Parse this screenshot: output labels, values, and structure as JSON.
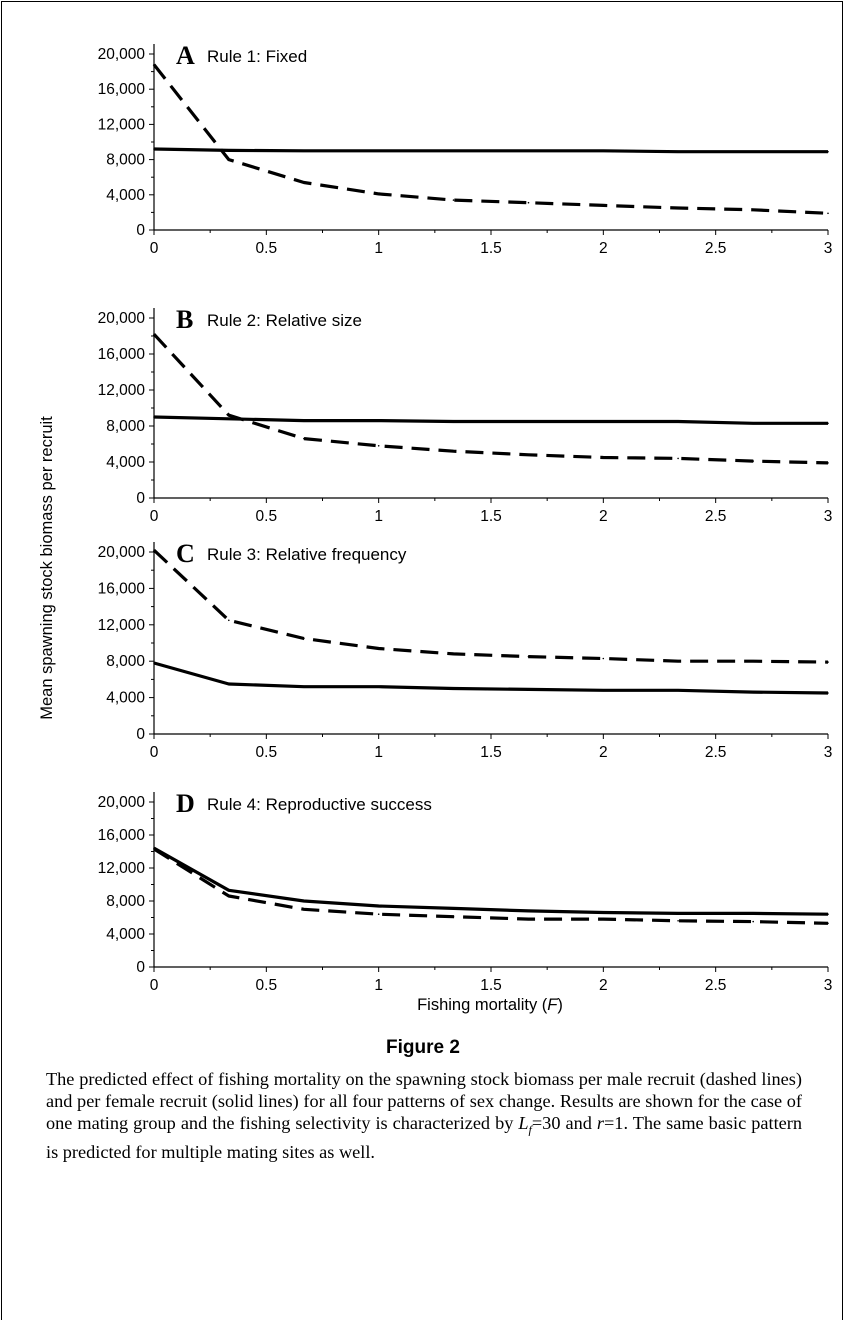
{
  "y_axis_label": "Mean spawning stock biomass per recruit",
  "x_axis_label_prefix": "Fishing mortality (",
  "x_axis_label_symbol": "F",
  "x_axis_label_suffix": ")",
  "figure_title": "Figure 2",
  "caption_parts": {
    "before_lf": "The predicted effect of fishing mortality on the spawning stock biomass per male recruit (dashed lines) and per female recruit (solid lines) for all four patterns of sex change. Results are shown for the case of one mating group and the fishing selectivity is characterized by ",
    "lf_symbol": "L",
    "lf_subscript": "f",
    "lf_value": "=30 and ",
    "r_symbol": "r",
    "after_r": "=1. The same basic pattern is predicted for multiple mating sites as well."
  },
  "chart_data": [
    {
      "type": "line",
      "panel_letter": "A",
      "title": "Rule 1: Fixed",
      "x": [
        0,
        0.333,
        0.667,
        1,
        1.333,
        1.667,
        2,
        2.333,
        2.667,
        3
      ],
      "x_ticks": [
        "0",
        "0.5",
        "1",
        "1.5",
        "2",
        "2.5",
        "3"
      ],
      "y_ticks": [
        "0",
        "4,000",
        "8,000",
        "12,000",
        "16,000",
        "20,000"
      ],
      "xlim": [
        0,
        3
      ],
      "ylim": [
        0,
        20000
      ],
      "series": [
        {
          "style": "solid",
          "values": [
            9200,
            9050,
            9000,
            9000,
            9000,
            9000,
            9000,
            8900,
            8900,
            8900
          ]
        },
        {
          "style": "dashed",
          "values": [
            18800,
            8000,
            5400,
            4100,
            3400,
            3100,
            2800,
            2500,
            2300,
            1900
          ]
        }
      ]
    },
    {
      "type": "line",
      "panel_letter": "B",
      "title": "Rule 2: Relative size",
      "x": [
        0,
        0.333,
        0.667,
        1,
        1.333,
        1.667,
        2,
        2.333,
        2.667,
        3
      ],
      "x_ticks": [
        "0",
        "0.5",
        "1",
        "1.5",
        "2",
        "2.5",
        "3"
      ],
      "y_ticks": [
        "0",
        "4,000",
        "8,000",
        "12,000",
        "16,000",
        "20,000"
      ],
      "xlim": [
        0,
        3
      ],
      "ylim": [
        0,
        20000
      ],
      "series": [
        {
          "style": "solid",
          "values": [
            9000,
            8800,
            8600,
            8600,
            8500,
            8500,
            8500,
            8500,
            8300,
            8300
          ]
        },
        {
          "style": "dashed",
          "values": [
            18200,
            9200,
            6600,
            5800,
            5200,
            4800,
            4500,
            4400,
            4100,
            3900
          ]
        }
      ]
    },
    {
      "type": "line",
      "panel_letter": "C",
      "title": "Rule 3: Relative frequency",
      "x": [
        0,
        0.333,
        0.667,
        1,
        1.333,
        1.667,
        2,
        2.333,
        2.667,
        3
      ],
      "x_ticks": [
        "0",
        "0.5",
        "1",
        "1.5",
        "2",
        "2.5",
        "3"
      ],
      "y_ticks": [
        "0",
        "4,000",
        "8,000",
        "12,000",
        "16,000",
        "20,000"
      ],
      "xlim": [
        0,
        3
      ],
      "ylim": [
        0,
        20000
      ],
      "series": [
        {
          "style": "solid",
          "values": [
            7800,
            5500,
            5200,
            5200,
            5000,
            4900,
            4800,
            4800,
            4600,
            4500
          ]
        },
        {
          "style": "dashed",
          "values": [
            20200,
            12500,
            10500,
            9400,
            8800,
            8500,
            8300,
            8000,
            8000,
            7900
          ]
        }
      ]
    },
    {
      "type": "line",
      "panel_letter": "D",
      "title": "Rule 4: Reproductive success",
      "x": [
        0,
        0.333,
        0.667,
        1,
        1.333,
        1.667,
        2,
        2.333,
        2.667,
        3
      ],
      "x_ticks": [
        "0",
        "0.5",
        "1",
        "1.5",
        "2",
        "2.5",
        "3"
      ],
      "y_ticks": [
        "0",
        "4,000",
        "8,000",
        "12,000",
        "16,000",
        "20,000"
      ],
      "xlim": [
        0,
        3
      ],
      "ylim": [
        0,
        20000
      ],
      "series": [
        {
          "style": "solid",
          "values": [
            14400,
            9300,
            8000,
            7400,
            7100,
            6800,
            6600,
            6500,
            6500,
            6400
          ]
        },
        {
          "style": "dashed",
          "values": [
            14300,
            8600,
            7000,
            6400,
            6100,
            5800,
            5800,
            5600,
            5500,
            5300
          ]
        }
      ]
    }
  ]
}
